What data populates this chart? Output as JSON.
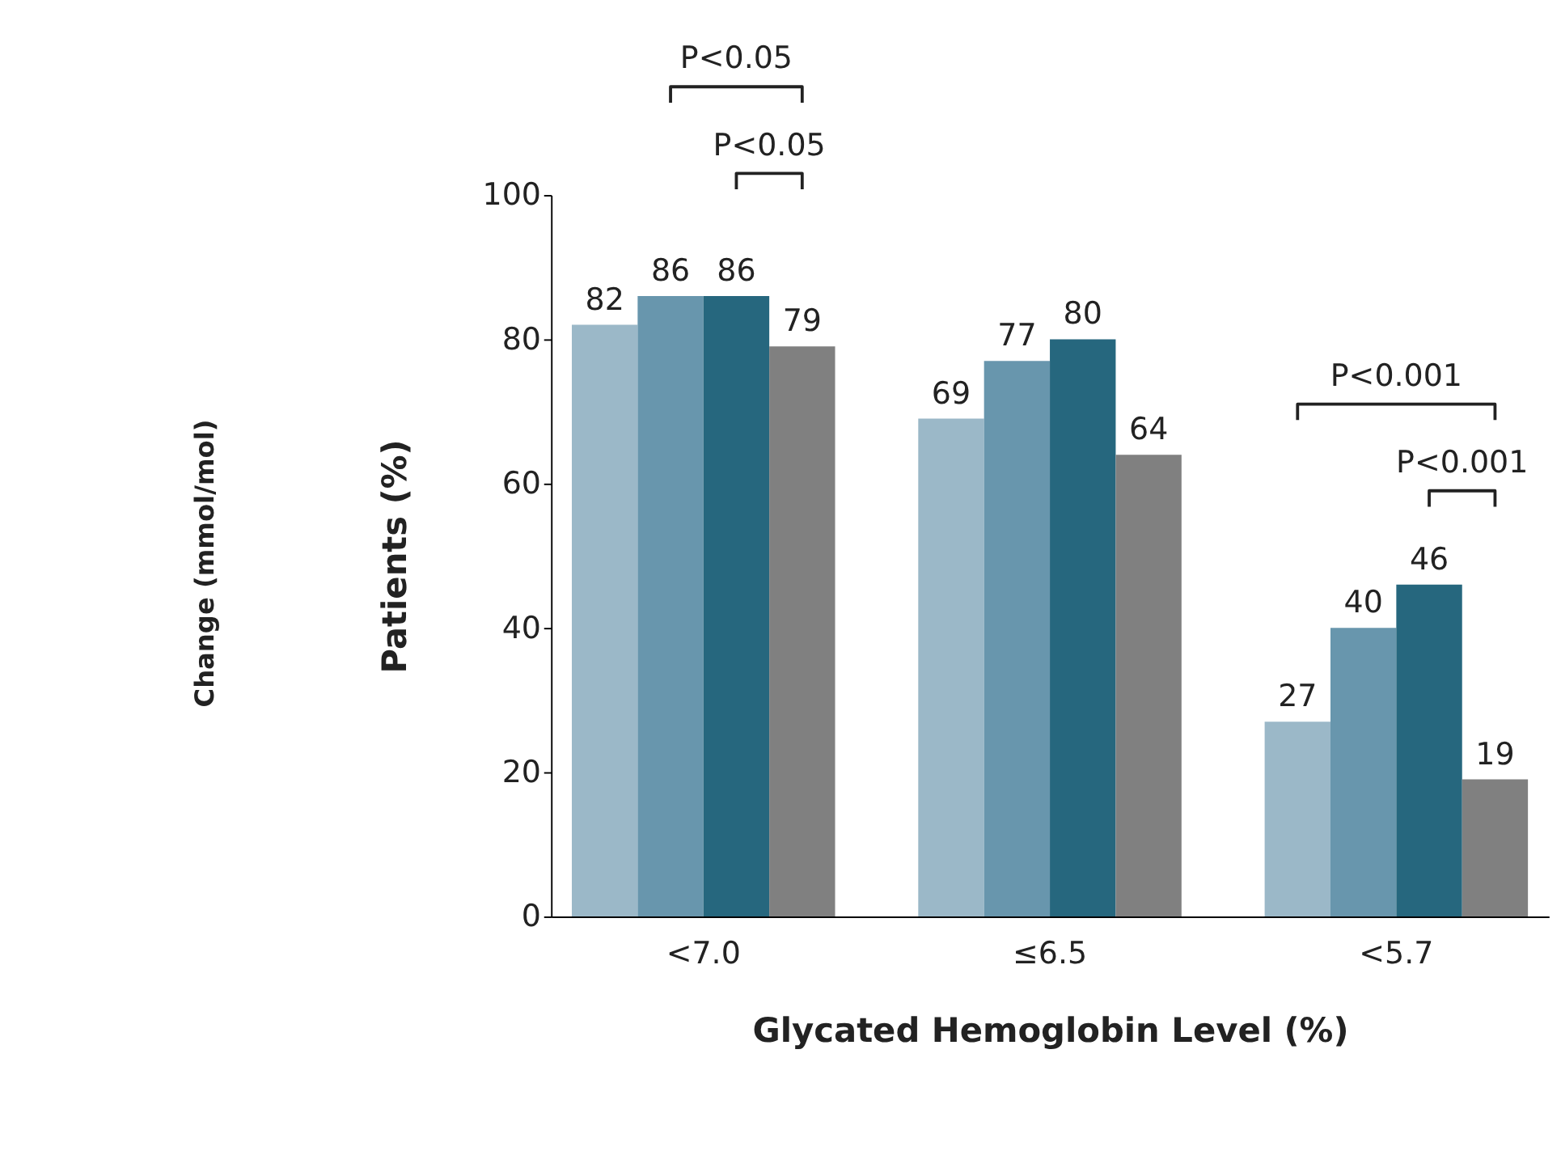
{
  "chart_data": {
    "type": "bar",
    "xlabel": "Glycated Hemoglobin Level (%)",
    "ylabel": "Patients (%)",
    "categories": [
      "<7.0",
      "≤6.5",
      "<5.7"
    ],
    "series": [
      {
        "color": "#9bb8c8",
        "values": [
          82,
          69,
          27
        ]
      },
      {
        "color": "#6896ad",
        "values": [
          86,
          77,
          40
        ]
      },
      {
        "color": "#26677e",
        "values": [
          86,
          80,
          46
        ]
      },
      {
        "color": "#808080",
        "values": [
          79,
          64,
          19
        ]
      }
    ],
    "ylim": [
      0,
      100
    ],
    "yticks": [
      0,
      20,
      40,
      60,
      80,
      100
    ],
    "grid": false,
    "data_labels": true,
    "annotations": [
      "Change (mmol/mol)",
      "P<0.05",
      "P<0.05",
      "P<0.001",
      "P<0.001"
    ]
  }
}
